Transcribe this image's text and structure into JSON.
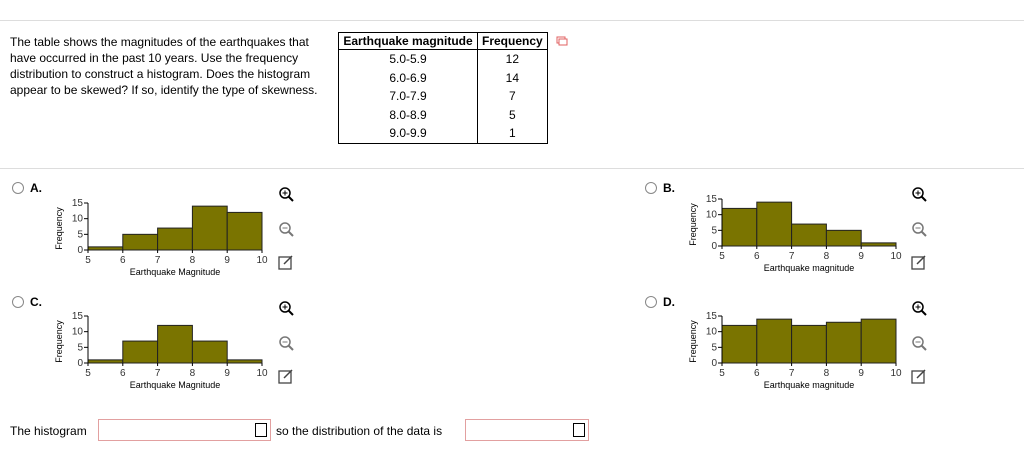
{
  "question": "The table shows the magnitudes of the earthquakes that have occurred in the past 10 years. Use the frequency distribution to construct a histogram. Does the histogram appear to be skewed? If so, identify the type of skewness.",
  "table": {
    "headers": [
      "Earthquake magnitude",
      "Frequency"
    ],
    "rows": [
      [
        "5.0-5.9",
        "12"
      ],
      [
        "6.0-6.9",
        "14"
      ],
      [
        "7.0-7.9",
        "7"
      ],
      [
        "8.0-8.9",
        "5"
      ],
      [
        "9.0-9.9",
        "1"
      ]
    ]
  },
  "options": [
    {
      "label": "A.",
      "chart": {
        "type": "histogram",
        "bins": [
          5,
          6,
          7,
          8,
          9,
          10
        ],
        "values": [
          1,
          5,
          7,
          14,
          12
        ],
        "color": "#7a7400",
        "xlim": [
          5,
          10
        ],
        "ylim": [
          0,
          15
        ],
        "xticks": [
          5,
          6,
          7,
          8,
          9,
          10
        ],
        "yticks": [
          0,
          5,
          10,
          15
        ],
        "x_label": "Earthquake Magnitude",
        "y_label": "Frequency"
      }
    },
    {
      "label": "B.",
      "chart": {
        "type": "histogram",
        "bins": [
          5,
          6,
          7,
          8,
          9,
          10
        ],
        "values": [
          12,
          14,
          7,
          5,
          1
        ],
        "color": "#7a7400",
        "xlim": [
          5,
          10
        ],
        "ylim": [
          0,
          15
        ],
        "xticks": [
          5,
          6,
          7,
          8,
          9,
          10
        ],
        "yticks": [
          0,
          5,
          10,
          15
        ],
        "x_label": "Earthquake magnitude",
        "y_label": "Frequency"
      }
    },
    {
      "label": "C.",
      "chart": {
        "type": "histogram",
        "bins": [
          5,
          6,
          7,
          8,
          9,
          10
        ],
        "values": [
          1,
          7,
          12,
          7,
          1
        ],
        "color": "#7a7400",
        "xlim": [
          5,
          10
        ],
        "ylim": [
          0,
          15
        ],
        "xticks": [
          5,
          6,
          7,
          8,
          9,
          10
        ],
        "yticks": [
          0,
          5,
          10,
          15
        ],
        "x_label": "Earthquake Magnitude",
        "y_label": "Frequency"
      }
    },
    {
      "label": "D.",
      "chart": {
        "type": "histogram",
        "bins": [
          5,
          6,
          7,
          8,
          9,
          10
        ],
        "values": [
          12,
          14,
          12,
          13,
          14
        ],
        "color": "#7a7400",
        "xlim": [
          5,
          10
        ],
        "ylim": [
          0,
          15
        ],
        "xticks": [
          5,
          6,
          7,
          8,
          9,
          10
        ],
        "yticks": [
          0,
          5,
          10,
          15
        ],
        "x_label": "Earthquake magnitude",
        "y_label": "Frequency"
      }
    }
  ],
  "answer": {
    "prefix": "The histogram",
    "middle": "so the distribution of the data is"
  }
}
